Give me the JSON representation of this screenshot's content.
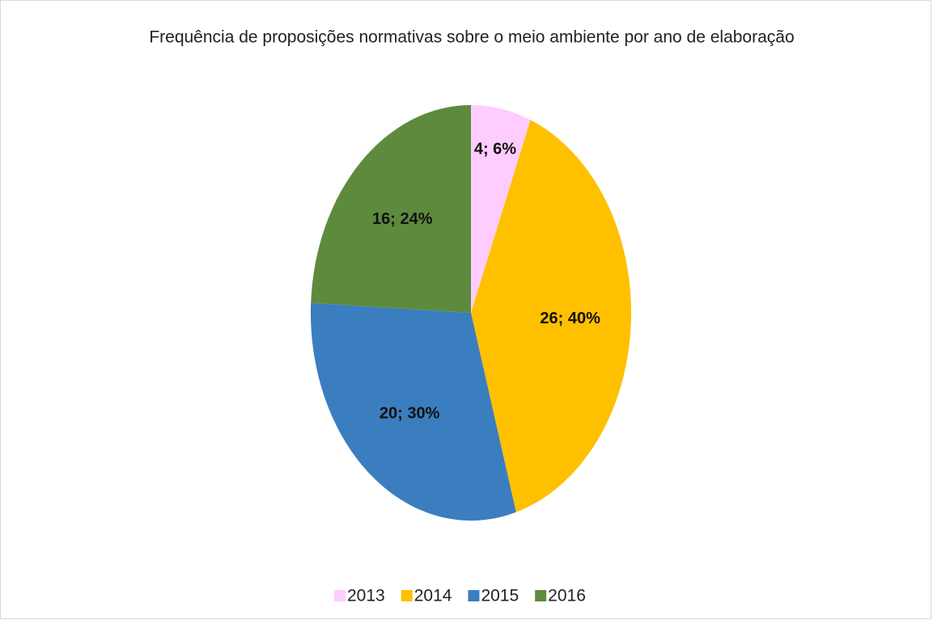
{
  "chart_data": {
    "type": "pie",
    "title": "Frequência de proposições normativas sobre o meio ambiente por ano de elaboração",
    "categories": [
      "2013",
      "2014",
      "2015",
      "2016"
    ],
    "values": [
      4,
      26,
      20,
      16
    ],
    "value_labels": [
      "4; 6%",
      "26; 40%",
      "20; 30%",
      "16; 24%"
    ],
    "colors": [
      "#ffccff",
      "#ffc000",
      "#3a7ebf",
      "#5e8a3e"
    ],
    "legend": "bottom"
  }
}
